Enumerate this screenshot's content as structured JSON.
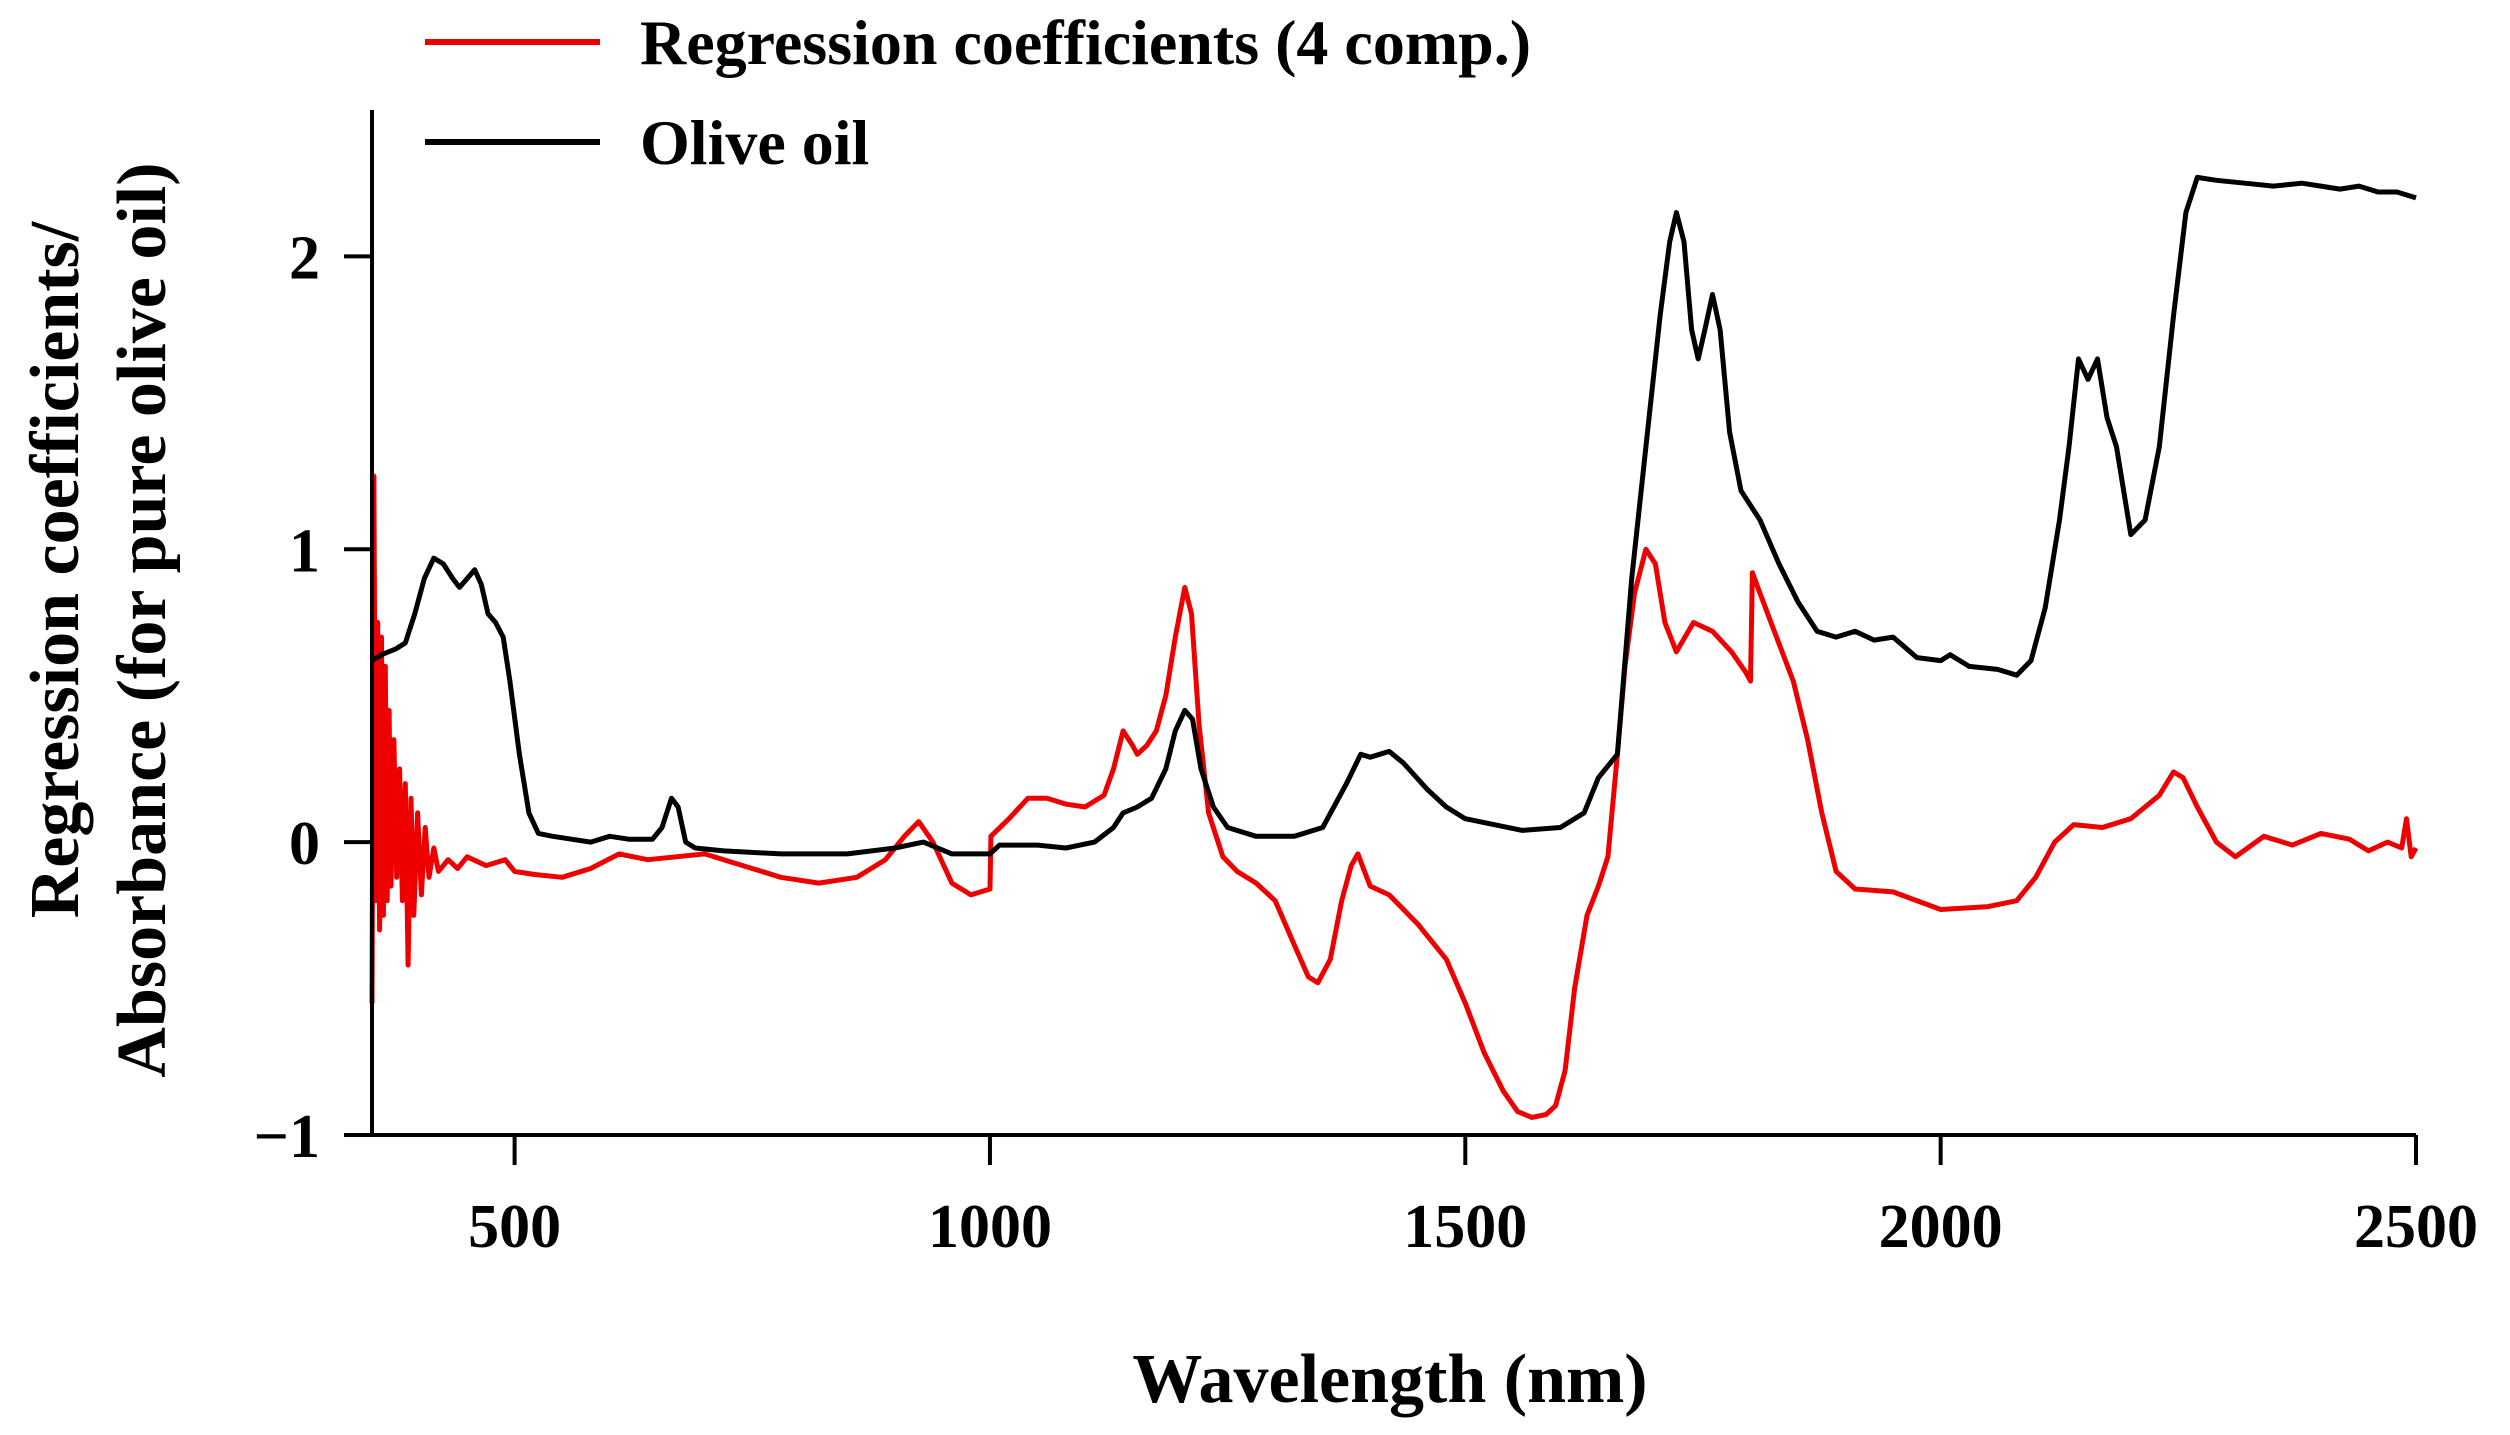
{
  "chart_data": {
    "type": "line",
    "title": "",
    "xlabel": "Wavelength (nm)",
    "ylabel_line1": "Regression coefficients/",
    "ylabel_line2": "Absorbance (for pure olive oil)",
    "xlim": [
      350,
      2500
    ],
    "ylim": [
      -1,
      2.5
    ],
    "xticks": [
      500,
      1000,
      1500,
      2000,
      2500
    ],
    "xtick_labels": [
      "500",
      "1000",
      "1500",
      "2000",
      "2500"
    ],
    "yticks": [
      -1,
      0,
      1,
      2
    ],
    "ytick_labels": [
      "−1",
      "0",
      "1",
      "2"
    ],
    "legend_position": "top-left",
    "series": [
      {
        "name": "Regression coefficients (4 comp.)",
        "color": "#ee0000",
        "points": [
          [
            350,
            -0.55
          ],
          [
            352,
            1.25
          ],
          [
            354,
            -0.2
          ],
          [
            356,
            0.75
          ],
          [
            358,
            -0.3
          ],
          [
            360,
            0.7
          ],
          [
            362,
            -0.25
          ],
          [
            364,
            0.6
          ],
          [
            366,
            -0.2
          ],
          [
            368,
            0.45
          ],
          [
            370,
            -0.15
          ],
          [
            373,
            0.35
          ],
          [
            376,
            -0.12
          ],
          [
            379,
            0.25
          ],
          [
            382,
            -0.2
          ],
          [
            385,
            0.2
          ],
          [
            388,
            -0.42
          ],
          [
            391,
            0.15
          ],
          [
            394,
            -0.25
          ],
          [
            398,
            0.1
          ],
          [
            402,
            -0.18
          ],
          [
            406,
            0.05
          ],
          [
            410,
            -0.12
          ],
          [
            415,
            -0.02
          ],
          [
            420,
            -0.1
          ],
          [
            430,
            -0.06
          ],
          [
            440,
            -0.09
          ],
          [
            450,
            -0.05
          ],
          [
            470,
            -0.08
          ],
          [
            490,
            -0.06
          ],
          [
            500,
            -0.1
          ],
          [
            520,
            -0.11
          ],
          [
            550,
            -0.12
          ],
          [
            580,
            -0.09
          ],
          [
            610,
            -0.04
          ],
          [
            640,
            -0.06
          ],
          [
            670,
            -0.05
          ],
          [
            700,
            -0.04
          ],
          [
            740,
            -0.08
          ],
          [
            780,
            -0.12
          ],
          [
            820,
            -0.14
          ],
          [
            860,
            -0.12
          ],
          [
            890,
            -0.06
          ],
          [
            910,
            0.02
          ],
          [
            925,
            0.07
          ],
          [
            940,
            0.0
          ],
          [
            960,
            -0.14
          ],
          [
            980,
            -0.18
          ],
          [
            1000,
            -0.16
          ],
          [
            1001,
            0.02
          ],
          [
            1020,
            0.08
          ],
          [
            1040,
            0.15
          ],
          [
            1060,
            0.15
          ],
          [
            1080,
            0.13
          ],
          [
            1100,
            0.12
          ],
          [
            1120,
            0.16
          ],
          [
            1130,
            0.25
          ],
          [
            1140,
            0.38
          ],
          [
            1150,
            0.33
          ],
          [
            1155,
            0.3
          ],
          [
            1165,
            0.33
          ],
          [
            1175,
            0.38
          ],
          [
            1185,
            0.5
          ],
          [
            1195,
            0.7
          ],
          [
            1205,
            0.87
          ],
          [
            1212,
            0.78
          ],
          [
            1220,
            0.4
          ],
          [
            1230,
            0.1
          ],
          [
            1245,
            -0.05
          ],
          [
            1260,
            -0.1
          ],
          [
            1280,
            -0.14
          ],
          [
            1300,
            -0.2
          ],
          [
            1320,
            -0.35
          ],
          [
            1335,
            -0.46
          ],
          [
            1345,
            -0.48
          ],
          [
            1358,
            -0.4
          ],
          [
            1370,
            -0.2
          ],
          [
            1380,
            -0.08
          ],
          [
            1387,
            -0.04
          ],
          [
            1394,
            -0.1
          ],
          [
            1400,
            -0.15
          ],
          [
            1420,
            -0.18
          ],
          [
            1450,
            -0.28
          ],
          [
            1480,
            -0.4
          ],
          [
            1500,
            -0.55
          ],
          [
            1520,
            -0.72
          ],
          [
            1540,
            -0.85
          ],
          [
            1555,
            -0.92
          ],
          [
            1570,
            -0.94
          ],
          [
            1585,
            -0.93
          ],
          [
            1595,
            -0.9
          ],
          [
            1605,
            -0.78
          ],
          [
            1615,
            -0.5
          ],
          [
            1628,
            -0.25
          ],
          [
            1640,
            -0.15
          ],
          [
            1650,
            -0.05
          ],
          [
            1660,
            0.3
          ],
          [
            1668,
            0.6
          ],
          [
            1678,
            0.85
          ],
          [
            1690,
            1.0
          ],
          [
            1700,
            0.95
          ],
          [
            1710,
            0.75
          ],
          [
            1722,
            0.65
          ],
          [
            1740,
            0.75
          ],
          [
            1760,
            0.72
          ],
          [
            1780,
            0.65
          ],
          [
            1795,
            0.58
          ],
          [
            1800,
            0.55
          ],
          [
            1802,
            0.92
          ],
          [
            1810,
            0.85
          ],
          [
            1825,
            0.72
          ],
          [
            1845,
            0.55
          ],
          [
            1860,
            0.35
          ],
          [
            1875,
            0.1
          ],
          [
            1890,
            -0.1
          ],
          [
            1910,
            -0.16
          ],
          [
            1950,
            -0.17
          ],
          [
            2000,
            -0.23
          ],
          [
            2050,
            -0.22
          ],
          [
            2080,
            -0.2
          ],
          [
            2100,
            -0.12
          ],
          [
            2120,
            0.0
          ],
          [
            2140,
            0.06
          ],
          [
            2170,
            0.05
          ],
          [
            2200,
            0.08
          ],
          [
            2230,
            0.16
          ],
          [
            2245,
            0.24
          ],
          [
            2255,
            0.22
          ],
          [
            2270,
            0.12
          ],
          [
            2290,
            0.0
          ],
          [
            2310,
            -0.05
          ],
          [
            2340,
            0.02
          ],
          [
            2370,
            -0.01
          ],
          [
            2400,
            0.03
          ],
          [
            2430,
            0.01
          ],
          [
            2450,
            -0.03
          ],
          [
            2470,
            0.0
          ],
          [
            2485,
            -0.02
          ],
          [
            2490,
            0.08
          ],
          [
            2495,
            -0.05
          ],
          [
            2500,
            -0.02
          ]
        ]
      },
      {
        "name": "Olive oil",
        "color": "#000000",
        "points": [
          [
            350,
            0.62
          ],
          [
            360,
            0.64
          ],
          [
            375,
            0.66
          ],
          [
            385,
            0.68
          ],
          [
            395,
            0.78
          ],
          [
            405,
            0.9
          ],
          [
            415,
            0.97
          ],
          [
            425,
            0.95
          ],
          [
            435,
            0.9
          ],
          [
            442,
            0.87
          ],
          [
            450,
            0.9
          ],
          [
            458,
            0.93
          ],
          [
            465,
            0.88
          ],
          [
            472,
            0.78
          ],
          [
            480,
            0.75
          ],
          [
            488,
            0.7
          ],
          [
            495,
            0.55
          ],
          [
            505,
            0.3
          ],
          [
            515,
            0.1
          ],
          [
            525,
            0.03
          ],
          [
            540,
            0.02
          ],
          [
            560,
            0.01
          ],
          [
            580,
            0.0
          ],
          [
            600,
            0.02
          ],
          [
            620,
            0.01
          ],
          [
            645,
            0.01
          ],
          [
            655,
            0.05
          ],
          [
            665,
            0.15
          ],
          [
            672,
            0.12
          ],
          [
            680,
            0.0
          ],
          [
            690,
            -0.02
          ],
          [
            720,
            -0.03
          ],
          [
            780,
            -0.04
          ],
          [
            850,
            -0.04
          ],
          [
            900,
            -0.02
          ],
          [
            930,
            0.0
          ],
          [
            960,
            -0.04
          ],
          [
            1000,
            -0.04
          ],
          [
            1010,
            -0.01
          ],
          [
            1050,
            -0.01
          ],
          [
            1080,
            -0.02
          ],
          [
            1110,
            0.0
          ],
          [
            1130,
            0.05
          ],
          [
            1140,
            0.1
          ],
          [
            1155,
            0.12
          ],
          [
            1170,
            0.15
          ],
          [
            1185,
            0.25
          ],
          [
            1195,
            0.38
          ],
          [
            1205,
            0.45
          ],
          [
            1213,
            0.42
          ],
          [
            1222,
            0.25
          ],
          [
            1235,
            0.12
          ],
          [
            1250,
            0.05
          ],
          [
            1280,
            0.02
          ],
          [
            1320,
            0.02
          ],
          [
            1350,
            0.05
          ],
          [
            1375,
            0.2
          ],
          [
            1390,
            0.3
          ],
          [
            1400,
            0.29
          ],
          [
            1410,
            0.3
          ],
          [
            1420,
            0.31
          ],
          [
            1435,
            0.27
          ],
          [
            1460,
            0.18
          ],
          [
            1480,
            0.12
          ],
          [
            1500,
            0.08
          ],
          [
            1530,
            0.06
          ],
          [
            1560,
            0.04
          ],
          [
            1600,
            0.05
          ],
          [
            1625,
            0.1
          ],
          [
            1640,
            0.22
          ],
          [
            1660,
            0.3
          ],
          [
            1675,
            0.9
          ],
          [
            1690,
            1.35
          ],
          [
            1705,
            1.8
          ],
          [
            1715,
            2.05
          ],
          [
            1722,
            2.15
          ],
          [
            1730,
            2.05
          ],
          [
            1738,
            1.75
          ],
          [
            1745,
            1.65
          ],
          [
            1752,
            1.75
          ],
          [
            1760,
            1.87
          ],
          [
            1768,
            1.75
          ],
          [
            1778,
            1.4
          ],
          [
            1790,
            1.2
          ],
          [
            1800,
            1.15
          ],
          [
            1810,
            1.1
          ],
          [
            1830,
            0.95
          ],
          [
            1850,
            0.82
          ],
          [
            1870,
            0.72
          ],
          [
            1890,
            0.7
          ],
          [
            1910,
            0.72
          ],
          [
            1930,
            0.69
          ],
          [
            1950,
            0.7
          ],
          [
            1975,
            0.63
          ],
          [
            2000,
            0.62
          ],
          [
            2010,
            0.64
          ],
          [
            2030,
            0.6
          ],
          [
            2060,
            0.59
          ],
          [
            2080,
            0.57
          ],
          [
            2095,
            0.62
          ],
          [
            2110,
            0.8
          ],
          [
            2125,
            1.1
          ],
          [
            2135,
            1.35
          ],
          [
            2145,
            1.65
          ],
          [
            2155,
            1.58
          ],
          [
            2165,
            1.65
          ],
          [
            2175,
            1.45
          ],
          [
            2185,
            1.35
          ],
          [
            2200,
            1.05
          ],
          [
            2215,
            1.1
          ],
          [
            2230,
            1.35
          ],
          [
            2245,
            1.8
          ],
          [
            2258,
            2.15
          ],
          [
            2270,
            2.27
          ],
          [
            2290,
            2.26
          ],
          [
            2320,
            2.25
          ],
          [
            2350,
            2.24
          ],
          [
            2380,
            2.25
          ],
          [
            2400,
            2.24
          ],
          [
            2420,
            2.23
          ],
          [
            2440,
            2.24
          ],
          [
            2460,
            2.22
          ],
          [
            2480,
            2.22
          ],
          [
            2500,
            2.2
          ]
        ]
      }
    ]
  }
}
